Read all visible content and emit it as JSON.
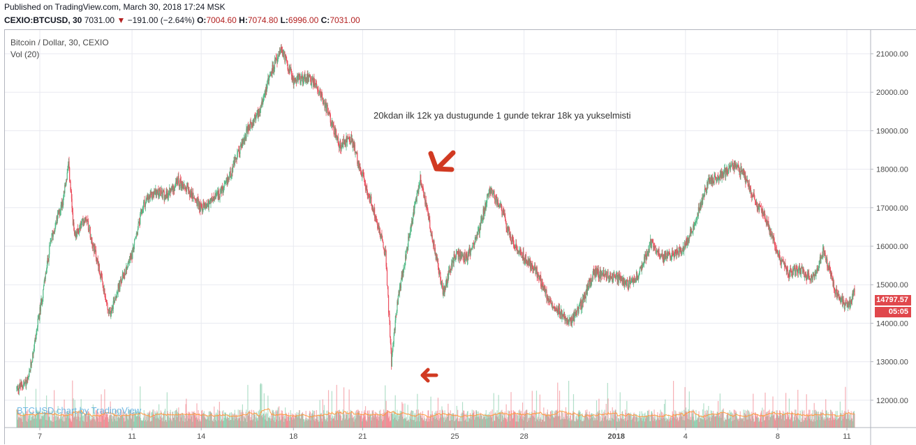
{
  "header": {
    "published": "Published on TradingView.com, March 30, 2018 17:24 MSK",
    "symbol": "CEXIO:BTCUSD, 30",
    "last": "7031.00",
    "down_arrow": "▼",
    "change": "−191.00 (−2.64%)",
    "o_label": "O:",
    "o_value": "7004.60",
    "h_label": "H:",
    "h_value": "7074.80",
    "l_label": "L:",
    "l_value": "6996.00",
    "c_label": "C:",
    "c_value": "7031.00"
  },
  "chart": {
    "legend_title": "Bitcoin / Dollar, 30, CEXIO",
    "legend_vol": "Vol (20)",
    "watermark": "BTCUSD chart by TradingView",
    "price_badge": "14797.57",
    "time_badge": "05:05",
    "annotation": "20kdan ilk 12k ya dustugunde 1 gunde tekrar 18k ya yukselmisti",
    "colors": {
      "up": "#53b987",
      "down": "#eb4d5c",
      "arrow": "#d13a22",
      "vol_ma": "#ff9a40",
      "grid": "#e8eaf0",
      "badge": "#e0474c"
    }
  },
  "chart_data": {
    "type": "candlestick",
    "y_ticks": [
      "12000.00",
      "13000.00",
      "14000.00",
      "15000.00",
      "16000.00",
      "17000.00",
      "18000.00",
      "19000.00",
      "20000.00",
      "21000.00"
    ],
    "ylim": [
      11550,
      21300
    ],
    "x_ticks": [
      "7",
      "11",
      "14",
      "18",
      "21",
      "25",
      "28",
      "2018",
      "4",
      "8",
      "11"
    ],
    "x_tick_positions": [
      "Dec 7",
      "Dec 11",
      "Dec 14",
      "Dec 18",
      "Dec 21",
      "Dec 25",
      "Dec 28",
      "Jan 1 2018",
      "Jan 4",
      "Jan 8",
      "Jan 11"
    ],
    "series": [
      {
        "kind": "price_path",
        "points": [
          [
            "Dec 6 00:00",
            12300
          ],
          [
            "Dec 6 12:00",
            12500
          ],
          [
            "Dec 7 00:00",
            14300
          ],
          [
            "Dec 7 12:00",
            16200
          ],
          [
            "Dec 8 00:00",
            17200
          ],
          [
            "Dec 8 06:00",
            18100
          ],
          [
            "Dec 8 12:00",
            16200
          ],
          [
            "Dec 9 00:00",
            16800
          ],
          [
            "Dec 9 12:00",
            15600
          ],
          [
            "Dec 10 00:00",
            14200
          ],
          [
            "Dec 10 08:00",
            14800
          ],
          [
            "Dec 11 00:00",
            15800
          ],
          [
            "Dec 11 12:00",
            17100
          ],
          [
            "Dec 12 00:00",
            17400
          ],
          [
            "Dec 12 12:00",
            17300
          ],
          [
            "Dec 13 00:00",
            17700
          ],
          [
            "Dec 13 12:00",
            17400
          ],
          [
            "Dec 14 00:00",
            17000
          ],
          [
            "Dec 14 12:00",
            17200
          ],
          [
            "Dec 15 00:00",
            17500
          ],
          [
            "Dec 16 00:00",
            19000
          ],
          [
            "Dec 16 12:00",
            19500
          ],
          [
            "Dec 17 00:00",
            20500
          ],
          [
            "Dec 17 12:00",
            21100
          ],
          [
            "Dec 18 00:00",
            20300
          ],
          [
            "Dec 18 12:00",
            20400
          ],
          [
            "Dec 19 00:00",
            20200
          ],
          [
            "Dec 19 12:00",
            19500
          ],
          [
            "Dec 20 00:00",
            18600
          ],
          [
            "Dec 20 12:00",
            18800
          ],
          [
            "Dec 21 00:00",
            17800
          ],
          [
            "Dec 21 12:00",
            16900
          ],
          [
            "Dec 22 00:00",
            15800
          ],
          [
            "Dec 22 06:00",
            13000
          ],
          [
            "Dec 22 12:00",
            14500
          ],
          [
            "Dec 23 00:00",
            16200
          ],
          [
            "Dec 23 12:00",
            17800
          ],
          [
            "Dec 24 00:00",
            16300
          ],
          [
            "Dec 24 12:00",
            14800
          ],
          [
            "Dec 25 00:00",
            15800
          ],
          [
            "Dec 25 12:00",
            15700
          ],
          [
            "Dec 26 00:00",
            16300
          ],
          [
            "Dec 26 12:00",
            17500
          ],
          [
            "Dec 27 00:00",
            17000
          ],
          [
            "Dec 27 12:00",
            16100
          ],
          [
            "Dec 28 00:00",
            15700
          ],
          [
            "Dec 28 12:00",
            15400
          ],
          [
            "Dec 29 00:00",
            14700
          ],
          [
            "Dec 29 12:00",
            14300
          ],
          [
            "Dec 30 00:00",
            14000
          ],
          [
            "Dec 30 12:00",
            14500
          ],
          [
            "Dec 31 00:00",
            15300
          ],
          [
            "Jan 1 00:00",
            15200
          ],
          [
            "Jan 1 12:00",
            15000
          ],
          [
            "Jan 2 00:00",
            15300
          ],
          [
            "Jan 2 12:00",
            16100
          ],
          [
            "Jan 3 00:00",
            15700
          ],
          [
            "Jan 3 12:00",
            15800
          ],
          [
            "Jan 4 00:00",
            16000
          ],
          [
            "Jan 4 12:00",
            16800
          ],
          [
            "Jan 5 00:00",
            17700
          ],
          [
            "Jan 5 12:00",
            17800
          ],
          [
            "Jan 6 00:00",
            18100
          ],
          [
            "Jan 6 12:00",
            17900
          ],
          [
            "Jan 7 00:00",
            17200
          ],
          [
            "Jan 7 12:00",
            16700
          ],
          [
            "Jan 8 00:00",
            15800
          ],
          [
            "Jan 8 12:00",
            15300
          ],
          [
            "Jan 9 00:00",
            15400
          ],
          [
            "Jan 9 12:00",
            15100
          ],
          [
            "Jan 10 00:00",
            15900
          ],
          [
            "Jan 10 12:00",
            14800
          ],
          [
            "Jan 11 00:00",
            14400
          ],
          [
            "Jan 11 08:00",
            14800
          ]
        ]
      }
    ],
    "volume_ma_label": "Vol (20)"
  }
}
